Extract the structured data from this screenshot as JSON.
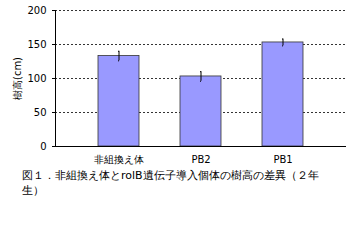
{
  "chart_data": {
    "type": "bar",
    "title": "図１．非組換え体とrolB遺伝子導入個体の樹高の差異（２年生）",
    "y_label": "樹高(cm)",
    "categories": [
      "非組換え体",
      "PB2",
      "PB1"
    ],
    "values": [
      133,
      103,
      153
    ],
    "errors": [
      7,
      7,
      5
    ],
    "color": "#9999ff",
    "ylim": [
      0,
      200
    ],
    "yticks": [
      0,
      50,
      100,
      150,
      200
    ],
    "grid": true
  }
}
